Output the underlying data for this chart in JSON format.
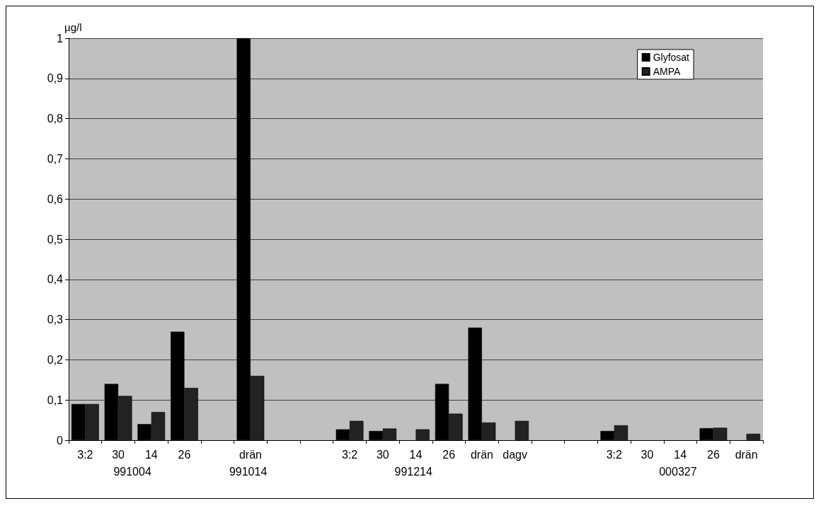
{
  "chart_data": {
    "type": "bar",
    "ylabel": "µg/l",
    "categories": [
      "3:2",
      "30",
      "14",
      "26",
      null,
      "drän",
      null,
      null,
      "3:2",
      "30",
      "14",
      "26",
      "drän",
      "dagv",
      null,
      null,
      "3:2",
      "30",
      "14",
      "26",
      "drän"
    ],
    "series": [
      {
        "name": "Glyfosat",
        "color": "#000000",
        "values": [
          0.09,
          0.14,
          0.04,
          0.27,
          null,
          1,
          null,
          null,
          0.027,
          0.023,
          null,
          0.14,
          0.28,
          null,
          null,
          null,
          0.023,
          null,
          null,
          0.03,
          null
        ]
      },
      {
        "name": "AMPA",
        "color": "#222222",
        "values": [
          0.09,
          0.11,
          0.07,
          0.13,
          null,
          0.16,
          null,
          null,
          0.048,
          0.029,
          0.027,
          0.066,
          0.044,
          0.048,
          null,
          null,
          0.037,
          null,
          null,
          0.031,
          0.016
        ]
      }
    ],
    "annotations": [
      "991004",
      "991014",
      "991214",
      "000327"
    ],
    "ylim": [
      0,
      1
    ],
    "yticks": [
      0,
      {
        "value": 0.1,
        "label": "0,1"
      },
      {
        "value": 0.2,
        "label": "0,2"
      },
      {
        "value": 0.3,
        "label": "0,3"
      },
      {
        "value": 0.4,
        "label": "0,4"
      },
      {
        "value": 0.5,
        "label": "0,5"
      },
      {
        "value": 0.6,
        "label": "0,6"
      },
      {
        "value": 0.7,
        "label": "0,7"
      },
      {
        "value": 0.8,
        "label": "0,8"
      },
      {
        "value": 0.9,
        "label": "0,9"
      },
      1
    ],
    "grid": "y",
    "legend": "top right"
  }
}
